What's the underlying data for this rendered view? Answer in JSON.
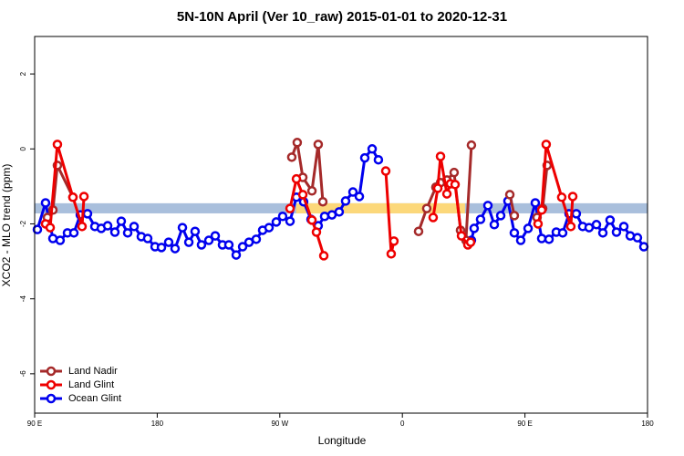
{
  "chart_data": {
    "type": "line",
    "title": "5N-10N April (Ver 10_raw)   2015-01-01 to 2020-12-31",
    "x_label": "Longitude",
    "y_label": "XCO2 - MLO trend (ppm)",
    "xlim": [
      90,
      540
    ],
    "ylim": [
      -7.05,
      3.0
    ],
    "xticks": [
      {
        "value": 90,
        "label": "90 E"
      },
      180,
      {
        "value": 270,
        "label": "90 W"
      },
      {
        "value": 360,
        "label": "0"
      },
      {
        "value": 450,
        "label": "90 E"
      },
      {
        "value": 540,
        "label": "180"
      }
    ],
    "yticks": [
      -6,
      -4,
      -2,
      0,
      2
    ],
    "legend": "bottom-left",
    "band": {
      "range": [
        -1.45,
        -1.72
      ],
      "color": "#a9bfdc",
      "highlight_color": "#fcd87a",
      "highlights": [
        [
          282,
          406
        ]
      ]
    },
    "series": [
      {
        "name": "Ocean Glint",
        "color": "#0000ee",
        "x": [
          92.0,
          98.0,
          103.4,
          108.7,
          114.1,
          118.8,
          123.5,
          128.8,
          134.2,
          138.9,
          143.6,
          148.9,
          153.6,
          158.3,
          163.0,
          168.3,
          173.0,
          178.4,
          183.1,
          188.4,
          193.1,
          198.5,
          203.2,
          207.8,
          212.5,
          217.9,
          222.6,
          227.9,
          232.6,
          238.0,
          242.7,
          247.4,
          252.7,
          257.4,
          262.1,
          267.4,
          272.1,
          277.5,
          282.2,
          287.5,
          292.9,
          298.2,
          302.9,
          308.3,
          313.6,
          318.3,
          323.7,
          328.4,
          332.4,
          337.8,
          342.4,
          null,
          410.7,
          412.7,
          417.4,
          422.8,
          427.5,
          432.2,
          437.5,
          442.2,
          446.9,
          452.3,
          457.6,
          462.3,
          467.7,
          473.0,
          477.7,
          482.4,
          487.7,
          492.4,
          497.1,
          502.5,
          507.2,
          512.5,
          517.2,
          522.6,
          527.3,
          532.6,
          537.3
        ],
        "values": [
          -2.15,
          -1.44,
          -2.39,
          -2.44,
          -2.24,
          -2.24,
          -1.76,
          -1.73,
          -2.07,
          -2.12,
          -2.05,
          -2.22,
          -1.93,
          -2.24,
          -2.07,
          -2.34,
          -2.39,
          -2.61,
          -2.63,
          -2.49,
          -2.66,
          -2.1,
          -2.49,
          -2.2,
          -2.56,
          -2.44,
          -2.32,
          -2.56,
          -2.56,
          -2.83,
          -2.61,
          -2.49,
          -2.41,
          -2.17,
          -2.1,
          -1.95,
          -1.8,
          -1.93,
          -1.29,
          -1.41,
          -1.88,
          -2.05,
          -1.8,
          -1.76,
          -1.68,
          -1.39,
          -1.15,
          -1.27,
          -0.24,
          0.0,
          -0.29,
          null,
          -2.44,
          -2.12,
          -1.88,
          -1.51,
          -2.02,
          -1.78,
          -1.39,
          -2.24,
          -2.44,
          -2.12,
          -1.44,
          -2.39,
          -2.41,
          -2.22,
          -2.24,
          -1.73,
          -1.73,
          -2.07,
          -2.1,
          -2.02,
          -2.24,
          -1.9,
          -2.22,
          -2.07,
          -2.32,
          -2.37,
          -2.61
        ]
      },
      {
        "name": "Land Nadir",
        "color": "#a52a2a",
        "x": [
          99.4,
          103.4,
          106.7,
          118.1,
          null,
          278.8,
          282.8,
          286.9,
          293.6,
          298.2,
          301.6,
          null,
          371.9,
          377.9,
          384.6,
          388.0,
          392.7,
          398.0,
          402.7,
          406.7,
          410.7,
          null,
          438.9,
          442.2,
          null,
          458.9,
          463.0,
          466.3
        ],
        "values": [
          -1.83,
          -1.63,
          -0.44,
          -1.29,
          null,
          -0.22,
          0.17,
          -0.76,
          -1.12,
          0.12,
          -1.41,
          null,
          -2.2,
          -1.59,
          -1.02,
          -0.9,
          -0.83,
          -0.63,
          -2.17,
          -2.44,
          0.1,
          null,
          -1.22,
          -1.78,
          null,
          -1.83,
          -1.59,
          -0.44
        ]
      },
      {
        "name": "Land Glint",
        "color": "#ee0000",
        "x": [
          98.0,
          101.4,
          106.7,
          118.1,
          124.8,
          126.2,
          null,
          277.5,
          282.2,
          286.9,
          293.6,
          296.9,
          302.3,
          null,
          347.8,
          351.8,
          353.8,
          null,
          382.6,
          386.0,
          388.0,
          392.7,
          395.3,
          398.7,
          403.4,
          408.1,
          410.1,
          null,
          459.6,
          462.3,
          465.6,
          477.0,
          483.7,
          485.1
        ],
        "values": [
          -2.0,
          -2.1,
          0.12,
          -1.29,
          -2.07,
          -1.27,
          null,
          -1.59,
          -0.8,
          -1.22,
          -1.9,
          -2.22,
          -2.85,
          null,
          -0.59,
          -2.8,
          -2.46,
          null,
          -1.83,
          -1.05,
          -0.2,
          -1.2,
          -0.93,
          -0.95,
          -2.32,
          -2.56,
          -2.49,
          null,
          -2.0,
          -1.63,
          0.12,
          -1.29,
          -2.07,
          -1.27
        ]
      }
    ],
    "legend_order": [
      "Land Nadir",
      "Land Glint",
      "Ocean Glint"
    ]
  }
}
